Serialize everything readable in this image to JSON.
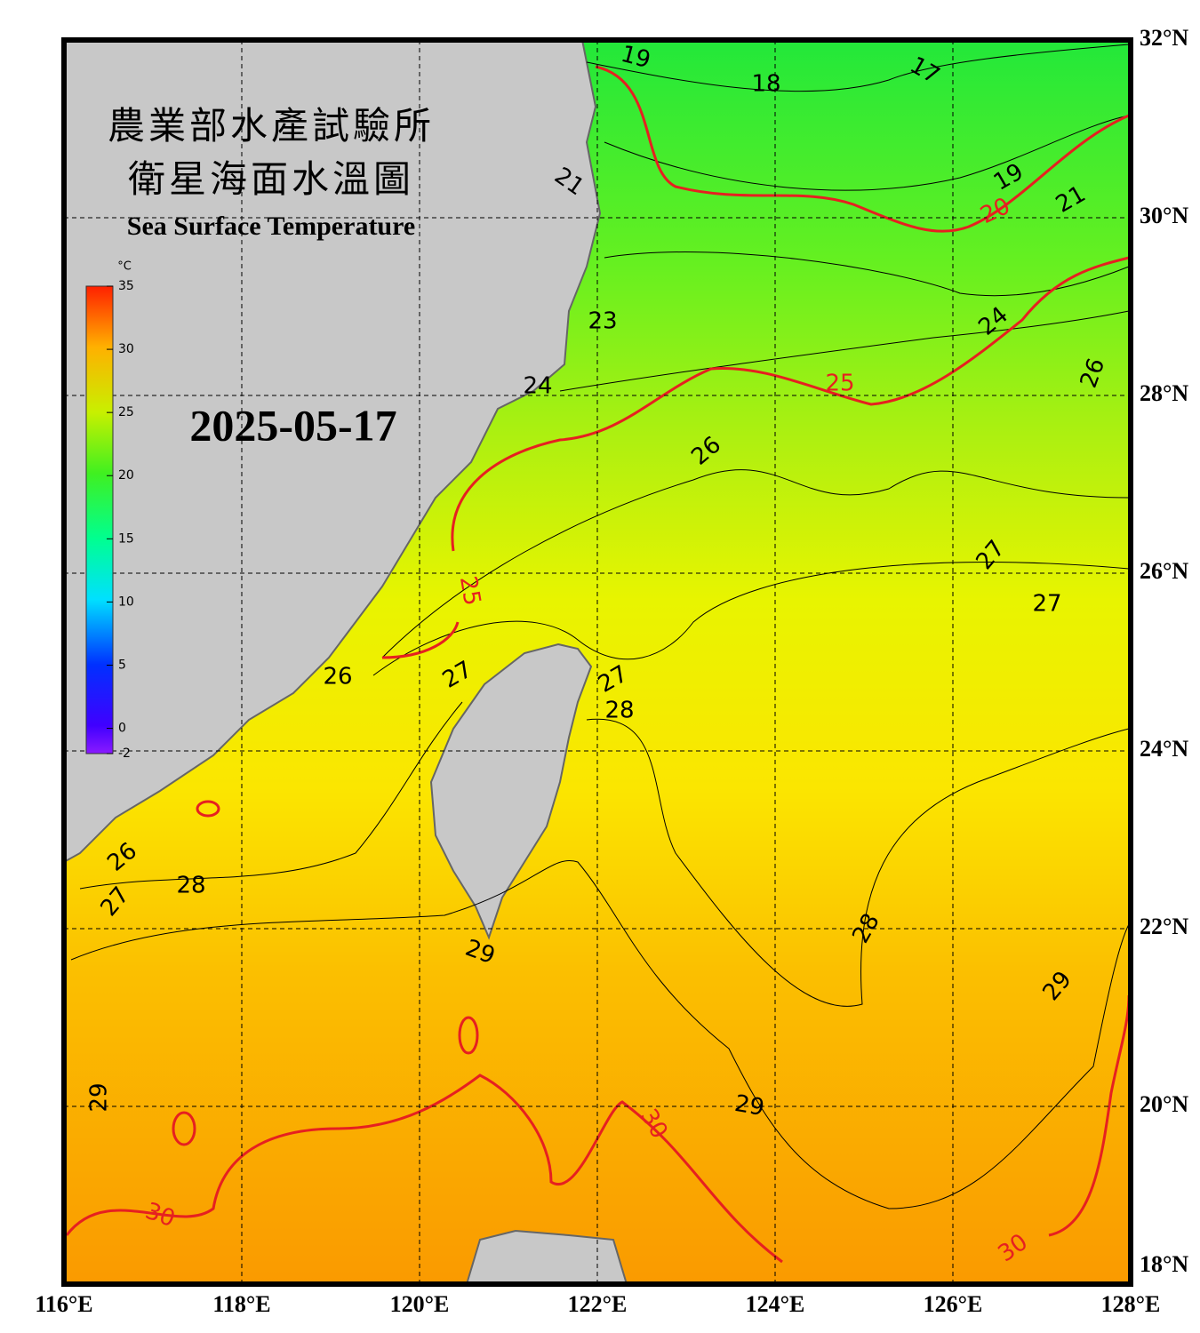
{
  "title_zh": "農業部水產試驗所",
  "subtitle_zh": "衛星海面水溫圖",
  "title_en": "Sea Surface Temperature",
  "date": "2025-05-17",
  "colorbar": {
    "unit": "°C",
    "range": [
      -2,
      35
    ],
    "ticks": [
      35,
      30,
      25,
      20,
      15,
      10,
      5,
      0,
      -2
    ]
  },
  "map": {
    "lon_range": [
      116,
      128
    ],
    "lat_range": [
      18,
      32
    ],
    "lon_ticks": [
      {
        "value": 116,
        "label": "116°E"
      },
      {
        "value": 118,
        "label": "118°E"
      },
      {
        "value": 120,
        "label": "120°E"
      },
      {
        "value": 122,
        "label": "122°E"
      },
      {
        "value": 124,
        "label": "124°E"
      },
      {
        "value": 126,
        "label": "126°E"
      },
      {
        "value": 128,
        "label": "128°E"
      }
    ],
    "lat_ticks": [
      {
        "value": 32,
        "label": "32°N"
      },
      {
        "value": 30,
        "label": "30°N"
      },
      {
        "value": 28,
        "label": "28°N"
      },
      {
        "value": 26,
        "label": "26°N"
      },
      {
        "value": 24,
        "label": "24°N"
      },
      {
        "value": 22,
        "label": "22°N"
      },
      {
        "value": 20,
        "label": "20°N"
      },
      {
        "value": 18,
        "label": "18°N"
      }
    ],
    "grid": true,
    "highlight_contours": [
      20,
      25,
      30
    ],
    "contour_labels": [
      19,
      18,
      17,
      21,
      20,
      19,
      21,
      23,
      24,
      26,
      24,
      25,
      26,
      25,
      27,
      27,
      26,
      27,
      27,
      28,
      26,
      28,
      27,
      28,
      29,
      29,
      29,
      29,
      30,
      30,
      30
    ]
  }
}
